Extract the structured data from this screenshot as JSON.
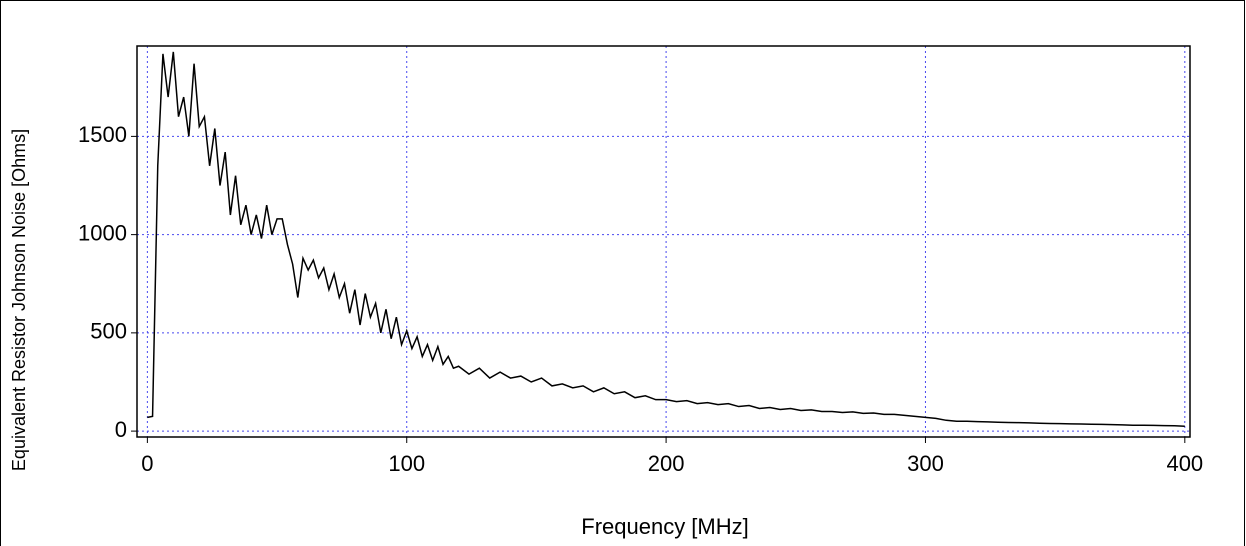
{
  "chart_data": {
    "type": "line",
    "xlabel": "Frequency [MHz]",
    "ylabel": "Equivalent Resistor Johnson Noise [Ohms]",
    "xlim": [
      -4,
      402
    ],
    "ylim": [
      -30,
      1960
    ],
    "xticks": [
      0,
      100,
      200,
      300,
      400
    ],
    "yticks": [
      0,
      500,
      1000,
      1500
    ],
    "grid": true,
    "grid_color": "#4848f0",
    "color": "#000000",
    "x": [
      0,
      2,
      4,
      6,
      8,
      10,
      12,
      14,
      16,
      18,
      20,
      22,
      24,
      26,
      28,
      30,
      32,
      34,
      36,
      38,
      40,
      42,
      44,
      46,
      48,
      50,
      52,
      54,
      56,
      58,
      60,
      62,
      64,
      66,
      68,
      70,
      72,
      74,
      76,
      78,
      80,
      82,
      84,
      86,
      88,
      90,
      92,
      94,
      96,
      98,
      100,
      102,
      104,
      106,
      108,
      110,
      112,
      114,
      116,
      118,
      120,
      124,
      128,
      132,
      136,
      140,
      144,
      148,
      152,
      156,
      160,
      164,
      168,
      172,
      176,
      180,
      184,
      188,
      192,
      196,
      200,
      204,
      208,
      212,
      216,
      220,
      224,
      228,
      232,
      236,
      240,
      244,
      248,
      252,
      256,
      260,
      264,
      268,
      272,
      276,
      280,
      284,
      288,
      292,
      296,
      300,
      304,
      308,
      312,
      316,
      320,
      324,
      328,
      332,
      336,
      340,
      344,
      348,
      352,
      356,
      360,
      364,
      368,
      372,
      376,
      380,
      384,
      388,
      392,
      396,
      400
    ],
    "values": [
      70,
      75,
      1350,
      1920,
      1700,
      1930,
      1600,
      1700,
      1500,
      1870,
      1550,
      1600,
      1350,
      1540,
      1250,
      1420,
      1100,
      1300,
      1050,
      1150,
      1000,
      1100,
      980,
      1150,
      1000,
      1080,
      1080,
      950,
      850,
      680,
      880,
      820,
      870,
      780,
      830,
      720,
      800,
      680,
      750,
      600,
      720,
      540,
      700,
      580,
      650,
      500,
      620,
      470,
      580,
      440,
      510,
      420,
      480,
      380,
      440,
      360,
      430,
      340,
      380,
      320,
      330,
      290,
      320,
      270,
      300,
      270,
      280,
      250,
      270,
      230,
      240,
      220,
      230,
      200,
      220,
      190,
      200,
      170,
      180,
      160,
      160,
      150,
      155,
      140,
      145,
      135,
      140,
      125,
      130,
      115,
      120,
      110,
      115,
      105,
      108,
      100,
      100,
      95,
      98,
      90,
      92,
      85,
      85,
      80,
      75,
      70,
      65,
      55,
      50,
      50,
      48,
      47,
      45,
      44,
      43,
      42,
      40,
      39,
      38,
      37,
      36,
      35,
      34,
      33,
      32,
      30,
      30,
      29,
      28,
      27,
      25
    ]
  }
}
